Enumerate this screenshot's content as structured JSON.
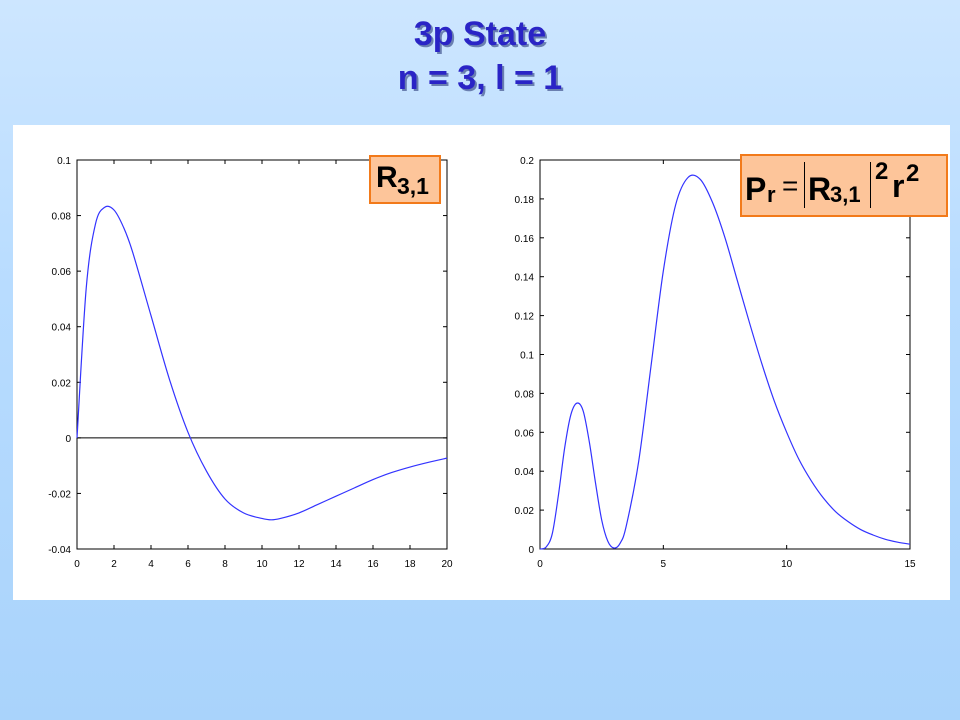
{
  "title": {
    "line1": "3p State",
    "line2": "n = 3, l = 1"
  },
  "colors": {
    "title": "#2a24c6",
    "curve": "#3333ff",
    "label_fill": "#fdc59a",
    "label_border": "#f27a1a"
  },
  "chart_data": [
    {
      "type": "line",
      "name": "left-plot",
      "xlim": [
        0,
        20
      ],
      "ylim": [
        -0.04,
        0.1
      ],
      "x_ticks": [
        "0",
        "2",
        "4",
        "6",
        "8",
        "10",
        "12",
        "14",
        "16",
        "18",
        "20"
      ],
      "y_ticks": [
        "-0.04",
        "-0.02",
        "0",
        "0.02",
        "0.04",
        "0.06",
        "0.08",
        "0.1"
      ],
      "zero_line": true,
      "x": [
        0,
        0.5,
        1,
        1.5,
        2,
        2.5,
        3,
        4,
        5,
        6,
        7,
        8,
        9,
        10,
        10.5,
        11,
        12,
        13,
        14,
        15,
        16,
        17,
        18,
        19,
        20
      ],
      "values": [
        0,
        0.054,
        0.077,
        0.083,
        0.082,
        0.076,
        0.067,
        0.044,
        0.021,
        0.002,
        -0.012,
        -0.022,
        -0.027,
        -0.029,
        -0.0295,
        -0.029,
        -0.027,
        -0.024,
        -0.021,
        -0.018,
        -0.015,
        -0.0125,
        -0.0105,
        -0.0088,
        -0.0073
      ],
      "annotation": {
        "main": "R",
        "sub": "3,1"
      }
    },
    {
      "type": "line",
      "name": "right-plot",
      "xlim": [
        0,
        15
      ],
      "ylim": [
        0,
        0.2
      ],
      "x_ticks": [
        "0",
        "5",
        "10",
        "15"
      ],
      "y_ticks": [
        "0",
        "0.02",
        "0.04",
        "0.06",
        "0.08",
        "0.1",
        "0.12",
        "0.14",
        "0.16",
        "0.18",
        "0.2"
      ],
      "x": [
        0,
        0.25,
        0.5,
        0.75,
        1,
        1.25,
        1.5,
        1.75,
        2,
        2.25,
        2.5,
        2.75,
        3,
        3.25,
        3.5,
        4,
        4.5,
        5,
        5.5,
        6,
        6.5,
        7,
        7.5,
        8,
        8.5,
        9,
        9.5,
        10,
        10.5,
        11,
        11.5,
        12,
        12.5,
        13,
        13.5,
        14,
        14.5,
        15
      ],
      "values": [
        0,
        0.001,
        0.008,
        0.028,
        0.052,
        0.069,
        0.075,
        0.071,
        0.055,
        0.034,
        0.015,
        0.004,
        0.0005,
        0.003,
        0.012,
        0.045,
        0.094,
        0.143,
        0.177,
        0.191,
        0.19,
        0.178,
        0.16,
        0.138,
        0.116,
        0.095,
        0.076,
        0.06,
        0.046,
        0.035,
        0.026,
        0.019,
        0.014,
        0.01,
        0.0072,
        0.005,
        0.0035,
        0.0025
      ],
      "annotation": {
        "main_p": "P",
        "sub_r": "r",
        "eq": "=",
        "main_r": "R",
        "sub": "3,1",
        "sup1": "2",
        "r": "r",
        "sup2": "2"
      }
    }
  ]
}
